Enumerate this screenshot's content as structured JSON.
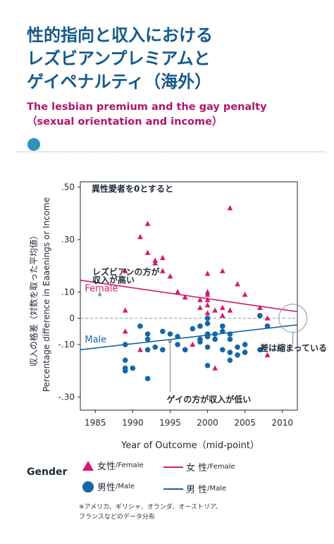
{
  "title": {
    "ja_lines": [
      "性的指向と収入における",
      "レズビアンプレミアムと",
      "ゲイペナルティ（海外）"
    ],
    "en_lines": [
      "The lesbian premium and the gay penalty",
      "（sexual orientation and income）"
    ]
  },
  "globe_icon": "globe-icon",
  "chart_data": {
    "type": "scatter",
    "xlabel": "Year of Outcome（mid-point）",
    "ylabel_ja": "収入の格差（対数を取った平均値）",
    "ylabel_en": "Percentage difference in Eaaenings or Income",
    "xlim": [
      1983,
      2012
    ],
    "ylim": [
      -0.35,
      0.52
    ],
    "xticks": [
      1985,
      1990,
      1995,
      2000,
      2005,
      2010
    ],
    "yticks": [
      {
        "v": 0.5,
        "label": ".50"
      },
      {
        "v": 0.3,
        "label": ".30"
      },
      {
        "v": 0.1,
        "label": ".10"
      },
      {
        "v": 0,
        "label": "0"
      },
      {
        "v": -0.1,
        "label": "-.10"
      },
      {
        "v": -0.3,
        "label": "-.30"
      }
    ],
    "baseline_label": "異性愛者を0とすると",
    "series": [
      {
        "name": "Female",
        "color": "#d6186f",
        "marker": "triangle",
        "points": [
          [
            1989,
            0.18
          ],
          [
            1989,
            0.03
          ],
          [
            1989,
            -0.05
          ],
          [
            1991,
            0.31
          ],
          [
            1991,
            -0.12
          ],
          [
            1992,
            0.36
          ],
          [
            1992,
            0.25
          ],
          [
            1993,
            0.22
          ],
          [
            1993,
            0.21
          ],
          [
            1994,
            0.23
          ],
          [
            1994,
            0.18
          ],
          [
            1995,
            0.16
          ],
          [
            1996,
            0.1
          ],
          [
            1997,
            0.08
          ],
          [
            1998,
            -0.1
          ],
          [
            1999,
            0.07
          ],
          [
            1999,
            0.04
          ],
          [
            2000,
            0.17
          ],
          [
            2000,
            0.1
          ],
          [
            2000,
            0.09
          ],
          [
            2000,
            0.07
          ],
          [
            2000,
            0.05
          ],
          [
            2000,
            0.02
          ],
          [
            2001,
            0.03
          ],
          [
            2001,
            -0.19
          ],
          [
            2002,
            0.18
          ],
          [
            2002,
            0.04
          ],
          [
            2002,
            0.01
          ],
          [
            2003,
            0.42
          ],
          [
            2003,
            0.03
          ],
          [
            2004,
            0.13
          ],
          [
            2005,
            0.09
          ],
          [
            2007,
            0.04
          ],
          [
            2008,
            0.0
          ],
          [
            2008,
            -0.14
          ]
        ],
        "trend": [
          [
            1983,
            0.145
          ],
          [
            2012,
            0.025
          ]
        ],
        "trend_label": "Female"
      },
      {
        "name": "Male",
        "color": "#1566a7",
        "marker": "circle",
        "points": [
          [
            1989,
            -0.1
          ],
          [
            1989,
            -0.16
          ],
          [
            1989,
            -0.19
          ],
          [
            1989,
            -0.2
          ],
          [
            1990,
            -0.19
          ],
          [
            1991,
            -0.03
          ],
          [
            1992,
            -0.06
          ],
          [
            1992,
            -0.08
          ],
          [
            1992,
            -0.12
          ],
          [
            1992,
            -0.23
          ],
          [
            1993,
            -0.11
          ],
          [
            1994,
            -0.05
          ],
          [
            1994,
            -0.12
          ],
          [
            1995,
            -0.06
          ],
          [
            1996,
            -0.07
          ],
          [
            1996,
            -0.1
          ],
          [
            1997,
            -0.12
          ],
          [
            1998,
            -0.04
          ],
          [
            1999,
            -0.03
          ],
          [
            1999,
            -0.08
          ],
          [
            1999,
            -0.09
          ],
          [
            2000,
            0.0
          ],
          [
            2000,
            -0.02
          ],
          [
            2000,
            -0.06
          ],
          [
            2000,
            -0.07
          ],
          [
            2000,
            -0.11
          ],
          [
            2000,
            -0.18
          ],
          [
            2001,
            -0.06
          ],
          [
            2001,
            -0.08
          ],
          [
            2002,
            -0.12
          ],
          [
            2002,
            -0.03
          ],
          [
            2002,
            -0.05
          ],
          [
            2003,
            -0.06
          ],
          [
            2003,
            -0.08
          ],
          [
            2003,
            -0.13
          ],
          [
            2003,
            -0.16
          ],
          [
            2004,
            -0.11
          ],
          [
            2004,
            -0.14
          ],
          [
            2005,
            -0.1
          ],
          [
            2005,
            -0.13
          ],
          [
            2007,
            0.01
          ],
          [
            2007,
            -0.12
          ],
          [
            2008,
            -0.03
          ]
        ],
        "trend": [
          [
            1983,
            -0.12
          ],
          [
            2012,
            -0.025
          ]
        ],
        "trend_label": "Male"
      }
    ],
    "annotations": {
      "lesbian_premium": [
        "レズビアンの方が",
        "収入が高い"
      ],
      "gay_penalty": "ゲイの方が収入が低い",
      "gap_closing": "差は縮まっている"
    }
  },
  "legend": {
    "title": "Gender",
    "female_marker_ja": "女性",
    "female_marker_en": "/Female",
    "female_line_ja": "女 性",
    "female_line_en": "/Female",
    "male_marker_ja": "男性",
    "male_marker_en": "/Male",
    "male_line_ja": "男 性",
    "male_line_en": "/Male"
  },
  "note_lines": [
    "※アメリカ、ギリシャ、オランダ、オーストリア、",
    "フランスなどのデータ分布"
  ]
}
